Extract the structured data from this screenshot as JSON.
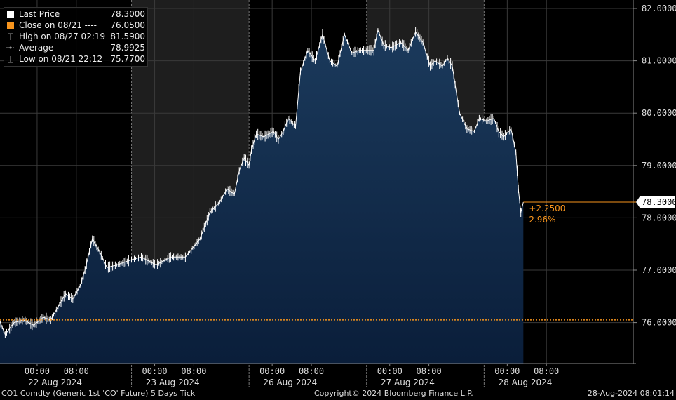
{
  "legend": {
    "last_label": "Last Price",
    "last_value": "78.3000",
    "close_label": "Close on 08/21 ----",
    "close_value": "76.0500",
    "high_label": "High on 08/27 02:19",
    "high_value": "81.5900",
    "avg_label": "Average",
    "avg_value": "78.9925",
    "low_label": "Low on 08/21 22:12",
    "low_value": "75.7700"
  },
  "colors": {
    "last": "#ffffff",
    "close": "#f7941d",
    "area_top": "#1b3a5c",
    "area_bottom": "#0a1e3a",
    "shade": "#1e1e1e",
    "grid": "#3a3a3a"
  },
  "footer": {
    "ticker": "CO1 Comdty (Generic 1st 'CO' Future) 5 Days  Tick",
    "copyright": "Copyright© 2024 Bloomberg Finance L.P.",
    "timestamp": "28-Aug-2024 08:01:14"
  },
  "chart_data": {
    "type": "area",
    "title": "CO1 Comdty (Generic 1st 'CO' Future) 5 Days Tick",
    "y_axis_side": "right",
    "ylim": [
      75.3,
      82.1
    ],
    "y_ticks": [
      76,
      77,
      78,
      79,
      80,
      81,
      82
    ],
    "y_tick_labels": [
      "76.0000",
      "77.0000",
      "78.0000",
      "79.0000",
      "80.0000",
      "81.0000",
      "82.0000"
    ],
    "x_tick_labels": [
      "00:00",
      "08:00",
      "00:00",
      "08:00",
      "00:00",
      "08:00",
      "00:00",
      "08:00",
      "00:00",
      "08:00"
    ],
    "day_labels": [
      "22 Aug 2024",
      "23 Aug 2024",
      "26 Aug 2024",
      "27 Aug 2024",
      "28 Aug 2024"
    ],
    "sessions": [
      {
        "day": "21 Aug 2024",
        "from": "21:00",
        "to": "24:00"
      },
      {
        "day": "22 Aug 2024",
        "from": "00:00",
        "to": "24:00"
      },
      {
        "day": "23 Aug 2024",
        "from": "00:00",
        "to": "24:00"
      },
      {
        "day": "26 Aug 2024",
        "from": "00:00",
        "to": "24:00"
      },
      {
        "day": "27 Aug 2024",
        "from": "00:00",
        "to": "24:00"
      },
      {
        "day": "28 Aug 2024",
        "from": "00:00",
        "to": "08:01"
      }
    ],
    "shaded_sessions": [
      "23 Aug 2024",
      "27 Aug 2024"
    ],
    "reference_line": {
      "label": "Close on 08/21",
      "value": 76.05,
      "style": "dotted"
    },
    "last_price_marker": {
      "value": 78.3,
      "label": "78.3000",
      "change": "+2.2500",
      "change_pct": "2.96%"
    },
    "series": [
      {
        "name": "Last Price",
        "points": [
          [
            "21 Aug 2024 21:00",
            76.05
          ],
          [
            "21 Aug 2024 22:12",
            75.77
          ],
          [
            "21 Aug 2024 24:00",
            76.0
          ],
          [
            "22 Aug 2024 02:00",
            76.05
          ],
          [
            "22 Aug 2024 04:00",
            75.95
          ],
          [
            "22 Aug 2024 06:00",
            76.1
          ],
          [
            "22 Aug 2024 07:30",
            76.05
          ],
          [
            "22 Aug 2024 09:00",
            76.3
          ],
          [
            "22 Aug 2024 10:30",
            76.55
          ],
          [
            "22 Aug 2024 12:00",
            76.45
          ],
          [
            "22 Aug 2024 13:30",
            76.7
          ],
          [
            "22 Aug 2024 14:30",
            77.0
          ],
          [
            "22 Aug 2024 16:00",
            77.6
          ],
          [
            "22 Aug 2024 17:30",
            77.35
          ],
          [
            "22 Aug 2024 19:00",
            77.05
          ],
          [
            "22 Aug 2024 21:00",
            77.1
          ],
          [
            "22 Aug 2024 24:00",
            77.2
          ],
          [
            "23 Aug 2024 02:00",
            77.25
          ],
          [
            "23 Aug 2024 05:00",
            77.1
          ],
          [
            "23 Aug 2024 08:00",
            77.25
          ],
          [
            "23 Aug 2024 11:00",
            77.25
          ],
          [
            "23 Aug 2024 14:00",
            77.6
          ],
          [
            "23 Aug 2024 16:00",
            78.1
          ],
          [
            "23 Aug 2024 18:00",
            78.3
          ],
          [
            "23 Aug 2024 19:30",
            78.55
          ],
          [
            "23 Aug 2024 21:00",
            78.45
          ],
          [
            "23 Aug 2024 22:00",
            78.9
          ],
          [
            "23 Aug 2024 23:00",
            79.15
          ],
          [
            "23 Aug 2024 24:00",
            79.0
          ],
          [
            "26 Aug 2024 00:30",
            79.3
          ],
          [
            "26 Aug 2024 01:30",
            79.6
          ],
          [
            "26 Aug 2024 03:00",
            79.55
          ],
          [
            "26 Aug 2024 05:00",
            79.65
          ],
          [
            "26 Aug 2024 06:00",
            79.5
          ],
          [
            "26 Aug 2024 07:00",
            79.65
          ],
          [
            "26 Aug 2024 08:00",
            79.9
          ],
          [
            "26 Aug 2024 09:30",
            79.75
          ],
          [
            "26 Aug 2024 10:30",
            80.8
          ],
          [
            "26 Aug 2024 12:00",
            81.2
          ],
          [
            "26 Aug 2024 13:30",
            81.0
          ],
          [
            "26 Aug 2024 15:00",
            81.5
          ],
          [
            "26 Aug 2024 16:30",
            81.0
          ],
          [
            "26 Aug 2024 18:00",
            80.9
          ],
          [
            "26 Aug 2024 19:30",
            81.5
          ],
          [
            "26 Aug 2024 21:00",
            81.15
          ],
          [
            "26 Aug 2024 22:30",
            81.2
          ],
          [
            "26 Aug 2024 24:00",
            81.2
          ],
          [
            "27 Aug 2024 01:30",
            81.2
          ],
          [
            "27 Aug 2024 02:19",
            81.59
          ],
          [
            "27 Aug 2024 03:30",
            81.3
          ],
          [
            "27 Aug 2024 05:00",
            81.25
          ],
          [
            "27 Aug 2024 07:00",
            81.35
          ],
          [
            "27 Aug 2024 08:30",
            81.2
          ],
          [
            "27 Aug 2024 10:00",
            81.55
          ],
          [
            "27 Aug 2024 11:30",
            81.35
          ],
          [
            "27 Aug 2024 13:00",
            80.9
          ],
          [
            "27 Aug 2024 14:00",
            81.0
          ],
          [
            "27 Aug 2024 15:30",
            80.9
          ],
          [
            "27 Aug 2024 16:30",
            81.05
          ],
          [
            "27 Aug 2024 17:30",
            80.9
          ],
          [
            "27 Aug 2024 19:00",
            80.0
          ],
          [
            "27 Aug 2024 20:30",
            79.7
          ],
          [
            "27 Aug 2024 22:00",
            79.65
          ],
          [
            "27 Aug 2024 23:00",
            79.9
          ],
          [
            "28 Aug 2024 00:30",
            79.85
          ],
          [
            "28 Aug 2024 02:00",
            79.9
          ],
          [
            "28 Aug 2024 03:00",
            79.65
          ],
          [
            "28 Aug 2024 04:00",
            79.55
          ],
          [
            "28 Aug 2024 05:30",
            79.7
          ],
          [
            "28 Aug 2024 06:30",
            79.25
          ],
          [
            "28 Aug 2024 07:00",
            78.55
          ],
          [
            "28 Aug 2024 07:30",
            78.1
          ],
          [
            "28 Aug 2024 08:01",
            78.3
          ]
        ]
      }
    ]
  }
}
